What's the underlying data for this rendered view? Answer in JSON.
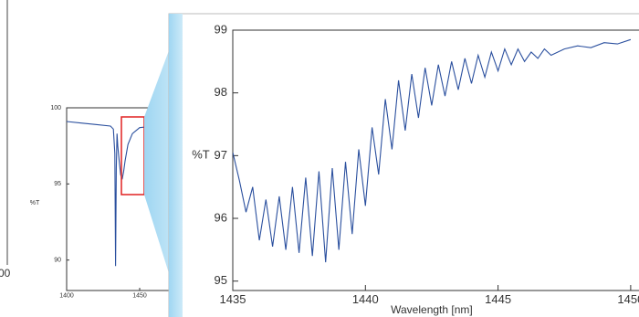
{
  "cropped_label": "00",
  "chart_data": [
    {
      "type": "line",
      "y_label": "%T",
      "color": "#2a4f9e",
      "x": [
        1400,
        1410,
        1420,
        1430,
        1432,
        1433,
        1433.5,
        1434,
        1434.5,
        1435,
        1436,
        1437,
        1438,
        1439,
        1440,
        1442,
        1445,
        1450,
        1460,
        1470
      ],
      "values": [
        99.1,
        99.0,
        98.9,
        98.8,
        98.6,
        97,
        89.6,
        96,
        98.3,
        97.5,
        96.5,
        95.6,
        95.3,
        95.8,
        96.5,
        97.6,
        98.3,
        98.7,
        98.8,
        98.9
      ],
      "xlim": [
        1400,
        1470
      ],
      "xticks": [
        1400,
        1450
      ],
      "ylim": [
        88,
        100
      ],
      "yticks": [
        90,
        95,
        100
      ]
    },
    {
      "type": "line",
      "x_label": "Wavelength [nm]",
      "y_label": "%T",
      "color": "#2a4f9e",
      "x": [
        1435,
        1435.25,
        1435.5,
        1435.75,
        1436,
        1436.25,
        1436.5,
        1436.75,
        1437,
        1437.25,
        1437.5,
        1437.75,
        1438,
        1438.25,
        1438.5,
        1438.75,
        1439,
        1439.25,
        1439.5,
        1439.75,
        1440,
        1440.25,
        1440.5,
        1440.75,
        1441,
        1441.25,
        1441.5,
        1441.75,
        1442,
        1442.25,
        1442.5,
        1442.75,
        1443,
        1443.25,
        1443.5,
        1443.75,
        1444,
        1444.25,
        1444.5,
        1444.75,
        1445,
        1445.25,
        1445.5,
        1445.75,
        1446,
        1446.25,
        1446.5,
        1446.75,
        1447,
        1447.5,
        1448,
        1448.5,
        1449,
        1449.5,
        1450
      ],
      "values": [
        97.05,
        96.6,
        96.1,
        96.5,
        95.65,
        96.3,
        95.55,
        96.35,
        95.5,
        96.5,
        95.45,
        96.65,
        95.4,
        96.75,
        95.3,
        96.8,
        95.5,
        96.9,
        95.75,
        97.1,
        96.2,
        97.45,
        96.7,
        97.9,
        97.1,
        98.2,
        97.4,
        98.3,
        97.6,
        98.4,
        97.8,
        98.45,
        97.95,
        98.5,
        98.05,
        98.55,
        98.15,
        98.6,
        98.25,
        98.65,
        98.35,
        98.7,
        98.45,
        98.7,
        98.5,
        98.65,
        98.55,
        98.7,
        98.6,
        98.7,
        98.75,
        98.72,
        98.8,
        98.78,
        98.85
      ],
      "xlim": [
        1435,
        1450.3
      ],
      "xticks": [
        1435,
        1440,
        1445,
        1450
      ],
      "ylim": [
        94.85,
        99
      ],
      "yticks": [
        95,
        96,
        97,
        98,
        99
      ]
    }
  ]
}
